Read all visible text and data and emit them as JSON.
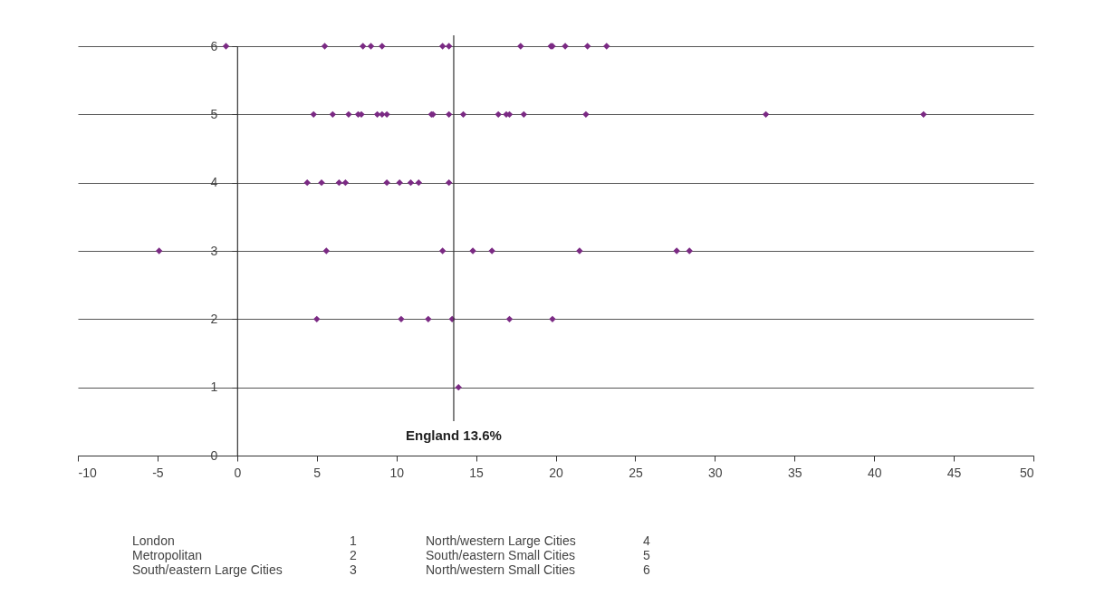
{
  "chart_data": {
    "type": "scatter",
    "x": [
      -0.7,
      5.5,
      7.9,
      8.4,
      9.1,
      12.9,
      13.3,
      17.8,
      19.7,
      19.8,
      20.6,
      22.0,
      23.2,
      4.8,
      6.0,
      7.0,
      7.6,
      7.8,
      8.8,
      9.1,
      9.4,
      12.2,
      12.3,
      13.3,
      14.2,
      16.4,
      16.9,
      17.1,
      18.0,
      21.9,
      33.2,
      43.1,
      4.4,
      5.3,
      6.4,
      6.8,
      9.4,
      10.2,
      10.9,
      11.4,
      13.3,
      -4.9,
      5.6,
      12.9,
      14.8,
      16.0,
      21.5,
      27.6,
      28.4,
      5.0,
      10.3,
      12.0,
      13.5,
      17.1,
      19.8,
      13.9
    ],
    "series": [
      {
        "color": "#7b2a84",
        "values": [
          6,
          6,
          6,
          6,
          6,
          6,
          6,
          6,
          6,
          6,
          6,
          6,
          6,
          5,
          5,
          5,
          5,
          5,
          5,
          5,
          5,
          5,
          5,
          5,
          5,
          5,
          5,
          5,
          5,
          5,
          5,
          5,
          4,
          4,
          4,
          4,
          4,
          4,
          4,
          4,
          4,
          3,
          3,
          3,
          3,
          3,
          3,
          3,
          3,
          2,
          2,
          2,
          2,
          2,
          2,
          1
        ]
      }
    ],
    "marker": "diamond",
    "xlim": [
      -10,
      50
    ],
    "xticks": [
      -10,
      -5,
      0,
      5,
      10,
      15,
      20,
      25,
      30,
      35,
      40,
      45,
      50
    ],
    "ylim": [
      0,
      6
    ],
    "yticks": [
      0,
      1,
      2,
      3,
      4,
      5,
      6
    ],
    "grid": "y",
    "ref_lines": [
      {
        "axis": "x",
        "value": 13.6,
        "label": "England 13.6%"
      }
    ],
    "annotations": [
      "London",
      "1",
      "Metropolitan",
      "2",
      "South/eastern Large Cities",
      "3",
      "North/western Large Cities",
      "4",
      "South/eastern Small Cities",
      "5",
      "North/western Small Cities",
      "6"
    ]
  }
}
